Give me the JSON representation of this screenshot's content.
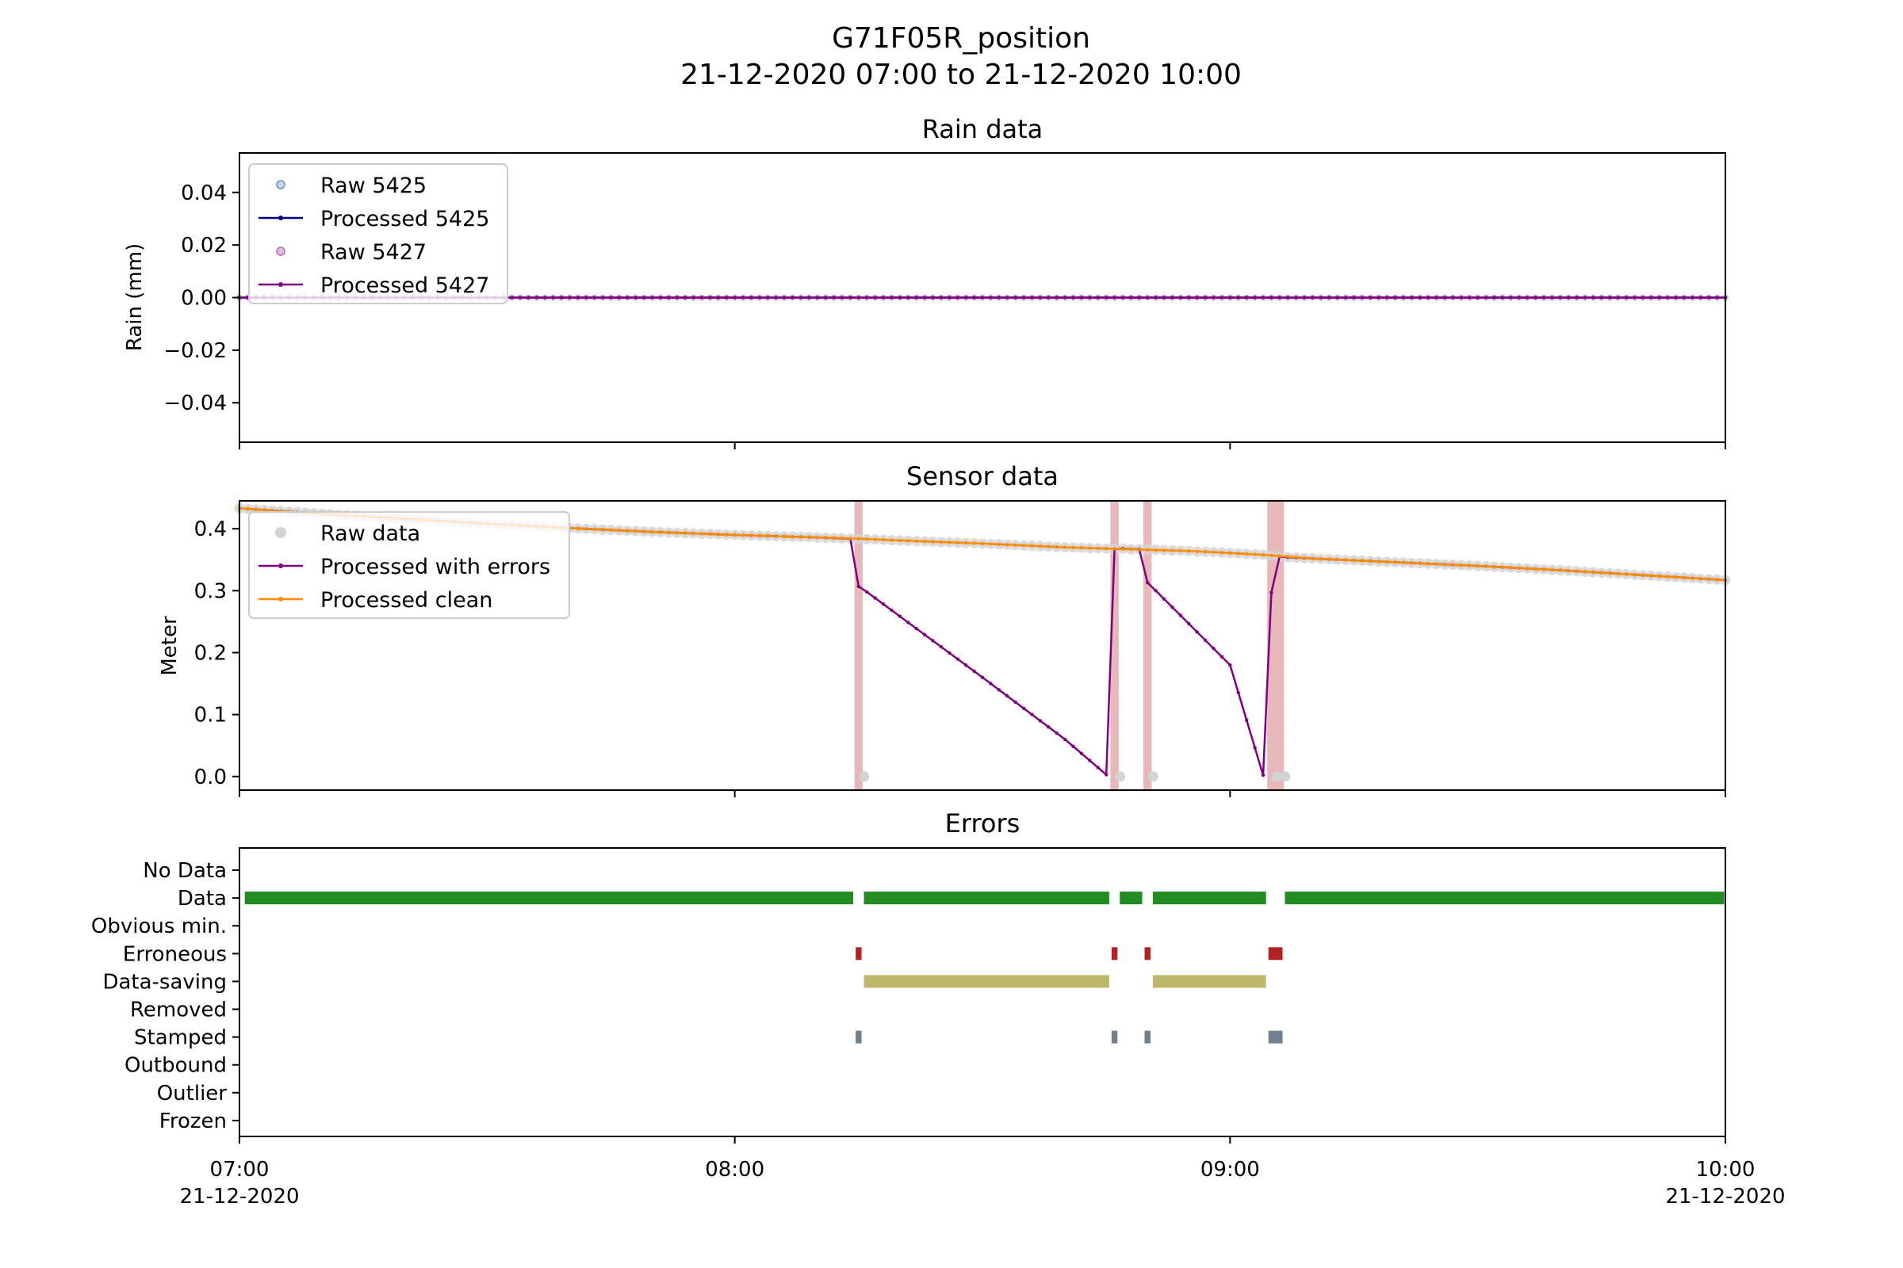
{
  "title": "G71F05R_position",
  "subtitle": "21-12-2020 07:00 to 21-12-2020 10:00",
  "x_ticks": [
    {
      "t": 0,
      "time": "07:00",
      "date": "21-12-2020"
    },
    {
      "t": 60,
      "time": "08:00",
      "date": ""
    },
    {
      "t": 120,
      "time": "09:00",
      "date": ""
    },
    {
      "t": 180,
      "time": "10:00",
      "date": "21-12-2020"
    }
  ],
  "colors": {
    "raw_5425": "#aec7e8",
    "processed_5425": "#000080",
    "raw_5427": "#dda0dd",
    "processed_5427": "#800080",
    "raw_sensor": "#d3d3d3",
    "processed_errors": "#800080",
    "processed_clean": "#ff8c00",
    "error_shade": "#e6b8b8",
    "data": "#228b22",
    "erroneous": "#b22222",
    "data_saving": "#bdb76b",
    "stamped": "#708090"
  },
  "chart_data": [
    {
      "type": "line",
      "title": "Rain data",
      "ylabel": "Rain (mm)",
      "xlabel": "",
      "x_unit": "minutes after 21-12-2020 07:00",
      "xlim": [
        0,
        180
      ],
      "ylim": [
        -0.055,
        0.055
      ],
      "y_ticks": [
        -0.04,
        -0.02,
        0.0,
        0.02,
        0.04
      ],
      "y_tick_labels": [
        "−0.04",
        "−0.02",
        "0.00",
        "0.02",
        "0.04"
      ],
      "legend_position": "top-left",
      "sample_interval_min": 1,
      "series": [
        {
          "name": "Raw 5425",
          "style": "points",
          "value": 0.0
        },
        {
          "name": "Processed 5425",
          "style": "line-markers",
          "value": 0.0
        },
        {
          "name": "Raw 5427",
          "style": "points",
          "value": 0.0
        },
        {
          "name": "Processed 5427",
          "style": "line-markers",
          "value": 0.0
        }
      ]
    },
    {
      "type": "line",
      "title": "Sensor data",
      "ylabel": "Meter",
      "xlabel": "",
      "xlim": [
        0,
        180
      ],
      "ylim": [
        -0.022,
        0.445
      ],
      "y_ticks": [
        0.0,
        0.1,
        0.2,
        0.3,
        0.4
      ],
      "y_tick_labels": [
        "0.0",
        "0.1",
        "0.2",
        "0.3",
        "0.4"
      ],
      "legend_position": "top-left",
      "error_spans": [
        [
          74.5,
          75.5
        ],
        [
          105.5,
          106.5
        ],
        [
          109.5,
          110.5
        ],
        [
          124.5,
          126.5
        ]
      ],
      "series": [
        {
          "name": "Raw data",
          "style": "points",
          "x": [
            0,
            10,
            20,
            30,
            40,
            50,
            60,
            70,
            74,
            75,
            76,
            80,
            90,
            100,
            105,
            106,
            107,
            108,
            109,
            110,
            111,
            115,
            120,
            124,
            125,
            126,
            127,
            130,
            140,
            150,
            160,
            170,
            180
          ],
          "y": [
            0.433,
            0.424,
            0.416,
            0.408,
            0.401,
            0.395,
            0.39,
            0.386,
            0.384,
            0.0,
            0.383,
            0.381,
            0.376,
            0.37,
            0.368,
            0.0,
            0.368,
            0.367,
            0.367,
            0.0,
            0.366,
            0.364,
            0.361,
            0.358,
            0.0,
            0.0,
            0.354,
            0.352,
            0.346,
            0.34,
            0.333,
            0.325,
            0.317
          ]
        },
        {
          "name": "Processed with errors",
          "style": "line-markers",
          "x": [
            0,
            10,
            20,
            30,
            40,
            50,
            60,
            70,
            74,
            75,
            76,
            90,
            100,
            105,
            106,
            107,
            108,
            109,
            110,
            111,
            120,
            124,
            125,
            126,
            127,
            130,
            140,
            150,
            160,
            170,
            180
          ],
          "y": [
            0.433,
            0.424,
            0.416,
            0.408,
            0.401,
            0.395,
            0.39,
            0.386,
            0.384,
            0.307,
            0.298,
            0.16,
            0.06,
            0.003,
            0.367,
            0.368,
            0.367,
            0.367,
            0.313,
            0.3,
            0.18,
            0.002,
            0.297,
            0.355,
            0.354,
            0.352,
            0.346,
            0.34,
            0.333,
            0.325,
            0.317
          ]
        },
        {
          "name": "Processed clean",
          "style": "line-markers",
          "x": [
            0,
            10,
            20,
            30,
            40,
            50,
            60,
            70,
            75,
            80,
            90,
            100,
            105,
            110,
            115,
            120,
            125,
            126,
            130,
            140,
            150,
            160,
            170,
            180
          ],
          "y": [
            0.433,
            0.424,
            0.416,
            0.408,
            0.401,
            0.395,
            0.39,
            0.386,
            0.384,
            0.381,
            0.376,
            0.37,
            0.368,
            0.366,
            0.364,
            0.361,
            0.357,
            0.356,
            0.352,
            0.346,
            0.34,
            0.333,
            0.325,
            0.317
          ]
        }
      ]
    },
    {
      "type": "timeline",
      "title": "Errors",
      "xlim": [
        0,
        180
      ],
      "categories": [
        "No Data",
        "Data",
        "Obvious min.",
        "Erroneous",
        "Data-saving",
        "Removed",
        "Stamped",
        "Outbound",
        "Outlier",
        "Frozen"
      ],
      "segments": [
        {
          "category": "Data",
          "ranges": [
            [
              0.5,
              74.5
            ],
            [
              75.5,
              105.5
            ],
            [
              106.5,
              109.5
            ],
            [
              110.5,
              124.5
            ],
            [
              126.5,
              180
            ]
          ]
        },
        {
          "category": "Erroneous",
          "ranges": [
            [
              74.5,
              75.5
            ],
            [
              105.5,
              106.5
            ],
            [
              109.5,
              110.5
            ],
            [
              124.5,
              126.5
            ]
          ]
        },
        {
          "category": "Data-saving",
          "ranges": [
            [
              75.5,
              105.5
            ],
            [
              110.5,
              124.5
            ]
          ]
        },
        {
          "category": "Stamped",
          "ranges": [
            [
              74.5,
              75.5
            ],
            [
              105.5,
              106.5
            ],
            [
              109.5,
              110.5
            ],
            [
              124.5,
              126.5
            ]
          ]
        }
      ]
    }
  ]
}
